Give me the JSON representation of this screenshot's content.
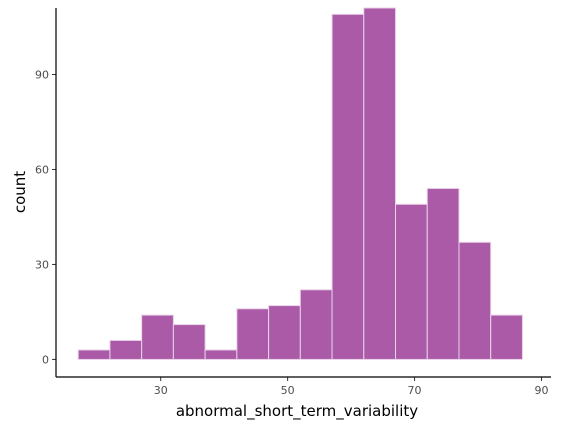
{
  "chart_data": {
    "type": "bar",
    "xlabel": "abnormal_short_term_variability",
    "ylabel": "count",
    "xlim": [
      13.5,
      91.5
    ],
    "ylim": [
      -5.55,
      111
    ],
    "x_ticks": [
      30,
      50,
      70,
      90
    ],
    "y_ticks": [
      0,
      30,
      60,
      90
    ],
    "bin_edges": [
      17,
      22,
      27,
      32,
      37,
      42,
      47,
      52,
      57,
      62,
      67,
      72,
      77,
      82,
      87
    ],
    "values": [
      3,
      6,
      14,
      11,
      3,
      16,
      17,
      22,
      109,
      111,
      49,
      54,
      37,
      14
    ],
    "grid": false,
    "colors": {
      "bar_fill": "#ab5aa8",
      "bar_edge": "#e8d2e7",
      "background": "#ffffff"
    }
  }
}
